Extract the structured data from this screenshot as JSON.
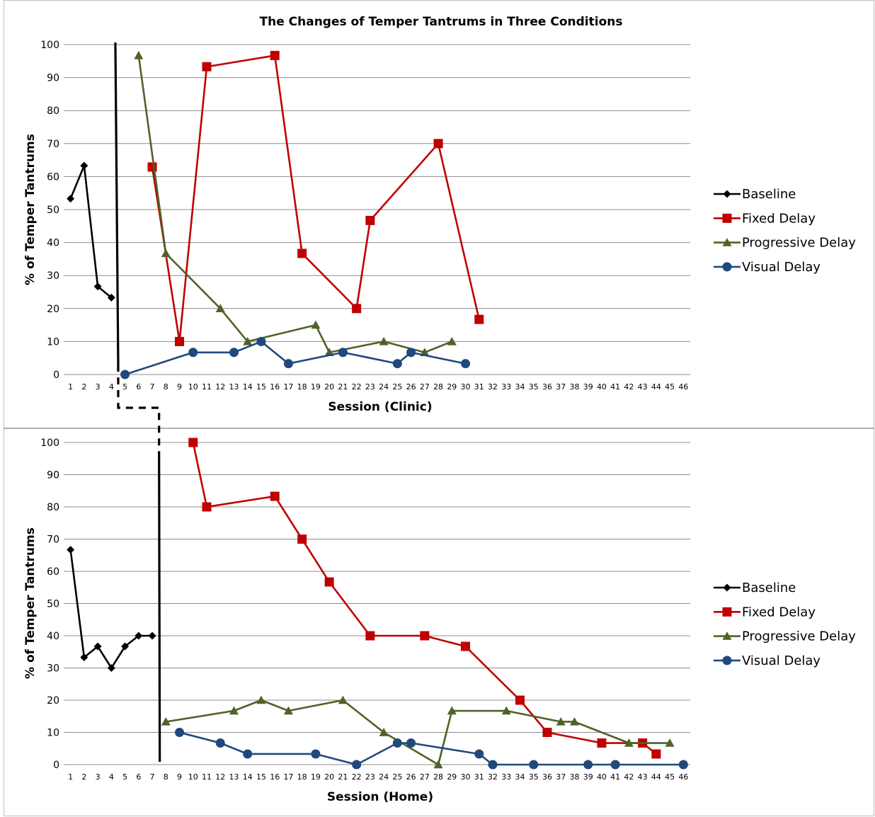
{
  "chart_data": [
    {
      "type": "line",
      "title": "The Changes of Temper Tantrums in Three Conditions",
      "xlabel": "Session (Clinic)",
      "ylabel": "% of Temper Tantrums",
      "xticks": [
        1,
        2,
        3,
        4,
        5,
        6,
        7,
        8,
        9,
        10,
        11,
        12,
        13,
        14,
        15,
        16,
        17,
        18,
        19,
        20,
        21,
        22,
        23,
        24,
        25,
        26,
        27,
        28,
        29,
        30,
        31,
        32,
        33,
        34,
        35,
        36,
        37,
        38,
        39,
        40,
        41,
        42,
        43,
        44,
        45,
        46
      ],
      "yticks": [
        0,
        10,
        20,
        30,
        40,
        50,
        60,
        70,
        80,
        90,
        100
      ],
      "ylim": [
        0,
        100
      ],
      "grid": "horizontal",
      "legend_position": "right",
      "series": [
        {
          "name": "Baseline",
          "color": "#000000",
          "marker": "diamond",
          "points": [
            [
              1,
              53.3
            ],
            [
              2,
              63.3
            ],
            [
              3,
              26.7
            ],
            [
              4,
              23.3
            ]
          ]
        },
        {
          "name": "Fixed Delay",
          "color": "#C00000",
          "marker": "square",
          "points": [
            [
              7,
              62.9
            ],
            [
              9,
              10
            ],
            [
              11,
              93.3
            ],
            [
              16,
              96.7
            ],
            [
              18,
              36.7
            ],
            [
              22,
              20
            ],
            [
              23,
              46.7
            ],
            [
              28,
              70
            ],
            [
              31,
              16.7
            ]
          ]
        },
        {
          "name": "Progressive Delay",
          "color": "#4F6228",
          "marker": "triangle",
          "points": [
            [
              6,
              96.7
            ],
            [
              8,
              36.7
            ],
            [
              12,
              20
            ],
            [
              14,
              10
            ],
            [
              19,
              15
            ],
            [
              20,
              6.7
            ],
            [
              24,
              10
            ],
            [
              27,
              6.7
            ],
            [
              29,
              10
            ]
          ]
        },
        {
          "name": "Visual Delay",
          "color": "#1F497D",
          "marker": "circle",
          "points": [
            [
              5,
              0
            ],
            [
              10,
              6.7
            ],
            [
              13,
              6.7
            ],
            [
              15,
              10
            ],
            [
              17,
              3.3
            ],
            [
              21,
              6.7
            ],
            [
              25,
              3.3
            ],
            [
              26,
              6.7
            ],
            [
              30,
              3.3
            ]
          ]
        }
      ]
    },
    {
      "type": "line",
      "xlabel": "Session (Home)",
      "ylabel": "% of Temper Tantrums",
      "xticks": [
        1,
        2,
        3,
        4,
        5,
        6,
        7,
        8,
        9,
        10,
        11,
        12,
        13,
        14,
        15,
        16,
        17,
        18,
        19,
        20,
        21,
        22,
        23,
        24,
        25,
        26,
        27,
        28,
        29,
        30,
        31,
        32,
        33,
        34,
        35,
        36,
        37,
        38,
        39,
        40,
        41,
        42,
        43,
        44,
        45,
        46
      ],
      "yticks": [
        0,
        10,
        20,
        30,
        40,
        50,
        60,
        70,
        80,
        90,
        100
      ],
      "ylim": [
        0,
        100
      ],
      "grid": "horizontal",
      "legend_position": "right",
      "series": [
        {
          "name": "Baseline",
          "color": "#000000",
          "marker": "diamond",
          "points": [
            [
              1,
              66.7
            ],
            [
              2,
              33.3
            ],
            [
              3,
              36.7
            ],
            [
              4,
              30
            ],
            [
              5,
              36.7
            ],
            [
              6,
              40
            ],
            [
              7,
              40
            ]
          ]
        },
        {
          "name": "Fixed Delay",
          "color": "#C00000",
          "marker": "square",
          "points": [
            [
              10,
              100
            ],
            [
              11,
              80
            ],
            [
              16,
              83.3
            ],
            [
              18,
              70
            ],
            [
              20,
              56.7
            ],
            [
              23,
              40
            ],
            [
              27,
              40
            ],
            [
              30,
              36.7
            ],
            [
              34,
              20
            ],
            [
              36,
              10
            ],
            [
              40,
              6.7
            ],
            [
              43,
              6.7
            ],
            [
              44,
              3.3
            ]
          ]
        },
        {
          "name": "Progressive Delay",
          "color": "#4F6228",
          "marker": "triangle",
          "points": [
            [
              8,
              13.3
            ],
            [
              13,
              16.7
            ],
            [
              15,
              20
            ],
            [
              17,
              16.7
            ],
            [
              21,
              20
            ],
            [
              24,
              10
            ],
            [
              28,
              0
            ],
            [
              29,
              16.7
            ],
            [
              33,
              16.7
            ],
            [
              37,
              13.3
            ],
            [
              38,
              13.3
            ],
            [
              42,
              6.7
            ],
            [
              45,
              6.7
            ]
          ]
        },
        {
          "name": "Visual Delay",
          "color": "#1F497D",
          "marker": "circle",
          "points": [
            [
              9,
              10
            ],
            [
              12,
              6.7
            ],
            [
              14,
              3.3
            ],
            [
              19,
              3.3
            ],
            [
              22,
              0
            ],
            [
              25,
              6.7
            ],
            [
              26,
              6.7
            ],
            [
              31,
              3.3
            ],
            [
              32,
              0
            ],
            [
              35,
              0
            ],
            [
              39,
              0
            ],
            [
              41,
              0
            ],
            [
              46,
              0
            ]
          ]
        }
      ]
    }
  ],
  "phase_change": {
    "clinic_after_session": 4.5,
    "home_after_session": 7.5,
    "color": "#000000"
  }
}
